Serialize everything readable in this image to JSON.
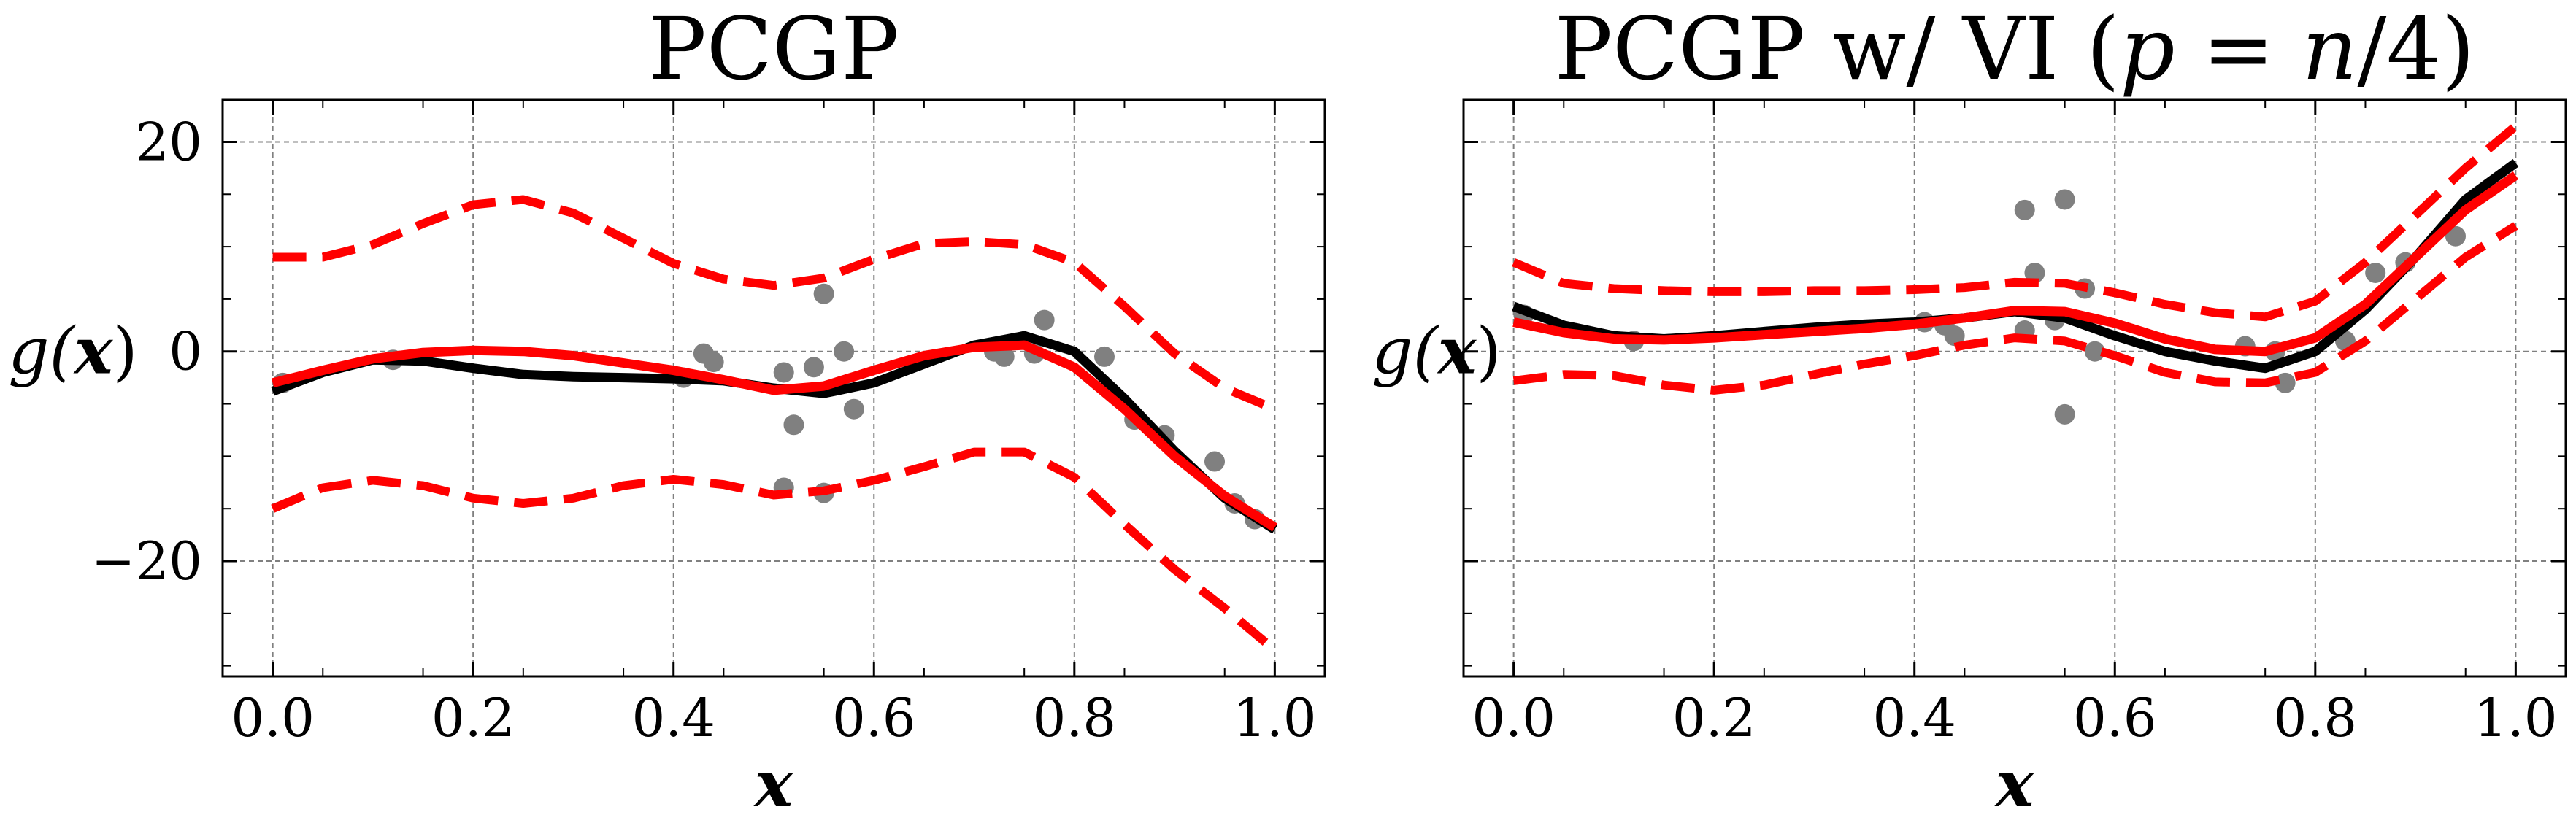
{
  "chart_data": [
    {
      "type": "line",
      "title": "PCGP",
      "xlabel": "x",
      "ylabel": "g(x)",
      "xlim": [
        -0.05,
        1.05
      ],
      "ylim": [
        -31,
        24
      ],
      "xticks": [
        0.0,
        0.2,
        0.4,
        0.6,
        0.8,
        1.0
      ],
      "xtick_labels": [
        "0.0",
        "0.2",
        "0.4",
        "0.6",
        "0.8",
        "1.0"
      ],
      "yticks": [
        20,
        0,
        -20
      ],
      "ytick_labels": [
        "20",
        "0",
        "−20"
      ],
      "show_ytick_labels": true,
      "grid": true,
      "legend": "none",
      "series": [
        {
          "style": "scatter",
          "color": "#808080",
          "x": [
            0.01,
            0.12,
            0.41,
            0.43,
            0.44,
            0.51,
            0.52,
            0.54,
            0.55,
            0.57,
            0.58,
            0.51,
            0.55,
            0.72,
            0.73,
            0.76,
            0.77,
            0.83,
            0.86,
            0.89,
            0.94,
            0.96,
            0.98
          ],
          "y": [
            -3,
            -0.8,
            -2.5,
            -0.2,
            -1,
            -2,
            -7,
            -1.5,
            5.5,
            0,
            -5.5,
            -13,
            -13.5,
            0,
            -0.5,
            -0.2,
            3,
            -0.5,
            -6.5,
            -8,
            -10.5,
            -14.5,
            -16
          ]
        },
        {
          "style": "solid",
          "color": "#000000",
          "x": [
            0.0,
            0.05,
            0.1,
            0.15,
            0.2,
            0.25,
            0.3,
            0.35,
            0.4,
            0.45,
            0.5,
            0.55,
            0.6,
            0.65,
            0.7,
            0.75,
            0.8,
            0.85,
            0.9,
            0.95,
            1.0
          ],
          "y": [
            -3.8,
            -2,
            -0.8,
            -0.9,
            -1.6,
            -2.2,
            -2.4,
            -2.5,
            -2.6,
            -2.8,
            -3.5,
            -4.0,
            -3.0,
            -1.2,
            0.6,
            1.5,
            0.0,
            -4.5,
            -9.5,
            -14.0,
            -17.0
          ]
        },
        {
          "style": "solid",
          "color": "#ff0000",
          "x": [
            0.0,
            0.05,
            0.1,
            0.15,
            0.2,
            0.25,
            0.3,
            0.35,
            0.4,
            0.45,
            0.5,
            0.55,
            0.6,
            0.65,
            0.7,
            0.75,
            0.8,
            0.85,
            0.9,
            0.95,
            1.0
          ],
          "y": [
            -3.0,
            -1.8,
            -0.7,
            -0.1,
            0.1,
            0.0,
            -0.4,
            -1.1,
            -1.8,
            -2.7,
            -3.7,
            -3.3,
            -1.8,
            -0.4,
            0.4,
            0.6,
            -1.5,
            -5.5,
            -10.0,
            -13.8,
            -16.8
          ]
        },
        {
          "style": "dashed",
          "color": "#ff0000",
          "x": [
            0.0,
            0.05,
            0.1,
            0.15,
            0.2,
            0.25,
            0.3,
            0.35,
            0.4,
            0.45,
            0.5,
            0.55,
            0.6,
            0.65,
            0.7,
            0.75,
            0.8,
            0.85,
            0.9,
            0.95,
            1.0
          ],
          "y": [
            9.0,
            9.0,
            10.2,
            12.2,
            14.0,
            14.5,
            13.2,
            10.8,
            8.4,
            6.9,
            6.3,
            7.0,
            8.8,
            10.3,
            10.5,
            10.2,
            8.5,
            4.3,
            -0.2,
            -3.5,
            -5.5
          ]
        },
        {
          "style": "dashed",
          "color": "#ff0000",
          "x": [
            0.0,
            0.05,
            0.1,
            0.15,
            0.2,
            0.25,
            0.3,
            0.35,
            0.4,
            0.45,
            0.5,
            0.55,
            0.6,
            0.65,
            0.7,
            0.75,
            0.8,
            0.85,
            0.9,
            0.95,
            1.0
          ],
          "y": [
            -15.0,
            -13.0,
            -12.3,
            -12.8,
            -14.0,
            -14.5,
            -14.0,
            -12.8,
            -12.2,
            -12.7,
            -13.7,
            -13.3,
            -12.3,
            -11.0,
            -9.6,
            -9.6,
            -12.0,
            -16.5,
            -20.8,
            -24.5,
            -28.5
          ]
        }
      ]
    },
    {
      "type": "line",
      "title": "PCGP w/ VI (p = n/4)",
      "title_parts": [
        "PCGP w/ VI (",
        "p",
        " = ",
        "n",
        "/4)"
      ],
      "xlabel": "x",
      "ylabel": "g(x)",
      "xlim": [
        -0.05,
        1.05
      ],
      "ylim": [
        -31,
        24
      ],
      "xticks": [
        0.0,
        0.2,
        0.4,
        0.6,
        0.8,
        1.0
      ],
      "xtick_labels": [
        "0.0",
        "0.2",
        "0.4",
        "0.6",
        "0.8",
        "1.0"
      ],
      "yticks": [
        20,
        0,
        -20
      ],
      "ytick_labels": [
        "20",
        "0",
        "−20"
      ],
      "show_ytick_labels": false,
      "grid": true,
      "legend": "none",
      "series": [
        {
          "style": "scatter",
          "color": "#808080",
          "x": [
            0.01,
            0.12,
            0.41,
            0.43,
            0.44,
            0.51,
            0.52,
            0.54,
            0.55,
            0.57,
            0.58,
            0.51,
            0.55,
            0.73,
            0.76,
            0.77,
            0.83,
            0.86,
            0.89,
            0.94
          ],
          "y": [
            3.5,
            1,
            2.8,
            2.5,
            1.5,
            2,
            7.5,
            3,
            -6,
            6,
            0,
            13.5,
            14.5,
            0.5,
            0,
            -3,
            1,
            7.5,
            8.5,
            11
          ],
          "comment_hidden": ""
        },
        {
          "style": "solid",
          "color": "#000000",
          "x": [
            0.0,
            0.05,
            0.1,
            0.15,
            0.2,
            0.25,
            0.3,
            0.35,
            0.4,
            0.45,
            0.5,
            0.55,
            0.6,
            0.65,
            0.7,
            0.75,
            0.8,
            0.85,
            0.9,
            0.95,
            1.0
          ],
          "y": [
            4.3,
            2.5,
            1.5,
            1.2,
            1.5,
            1.9,
            2.3,
            2.6,
            2.8,
            3.2,
            3.8,
            3.2,
            1.5,
            0.0,
            -0.9,
            -1.6,
            0.0,
            4.0,
            9.0,
            14.5,
            18.0
          ]
        },
        {
          "style": "solid",
          "color": "#ff0000",
          "x": [
            0.0,
            0.05,
            0.1,
            0.15,
            0.2,
            0.25,
            0.3,
            0.35,
            0.4,
            0.45,
            0.5,
            0.55,
            0.6,
            0.65,
            0.7,
            0.75,
            0.8,
            0.85,
            0.9,
            0.95,
            1.0
          ],
          "y": [
            2.8,
            1.8,
            1.2,
            1.1,
            1.3,
            1.6,
            1.9,
            2.2,
            2.6,
            3.2,
            3.9,
            3.8,
            2.7,
            1.2,
            0.2,
            0.0,
            1.3,
            4.5,
            9.0,
            13.5,
            16.8
          ]
        },
        {
          "style": "dashed",
          "color": "#ff0000",
          "x": [
            0.0,
            0.05,
            0.1,
            0.15,
            0.2,
            0.25,
            0.3,
            0.35,
            0.4,
            0.45,
            0.5,
            0.55,
            0.6,
            0.65,
            0.7,
            0.75,
            0.8,
            0.85,
            0.9,
            0.95,
            1.0
          ],
          "y": [
            8.5,
            6.5,
            6.0,
            5.8,
            5.7,
            5.7,
            5.8,
            5.8,
            5.9,
            6.1,
            6.6,
            6.5,
            5.6,
            4.5,
            3.7,
            3.3,
            4.8,
            8.5,
            13.0,
            17.5,
            21.5
          ]
        },
        {
          "style": "dashed",
          "color": "#ff0000",
          "x": [
            0.0,
            0.05,
            0.1,
            0.15,
            0.2,
            0.25,
            0.3,
            0.35,
            0.4,
            0.45,
            0.5,
            0.55,
            0.6,
            0.65,
            0.7,
            0.75,
            0.8,
            0.85,
            0.9,
            0.95,
            1.0
          ],
          "y": [
            -2.8,
            -2.2,
            -2.3,
            -3.2,
            -3.7,
            -3.2,
            -2.2,
            -1.2,
            -0.4,
            0.6,
            1.3,
            1.0,
            -0.4,
            -2.0,
            -2.9,
            -3.0,
            -2.0,
            1.0,
            5.0,
            9.0,
            12.0
          ]
        }
      ]
    }
  ]
}
